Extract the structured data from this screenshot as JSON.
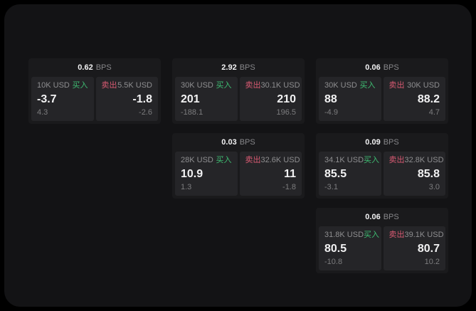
{
  "labels": {
    "buy": "买入",
    "sell": "卖出",
    "bps": "BPS"
  },
  "colors": {
    "buy_green": "#3ebd72",
    "sell_red": "#d85a72"
  },
  "cards": [
    {
      "bps": "0.62",
      "buy": {
        "amount": "10K USD",
        "value": "-3.7",
        "sub": "4.3"
      },
      "sell": {
        "amount": "5.5K USD",
        "value": "-1.8",
        "sub": "-2.6"
      }
    },
    {
      "bps": "2.92",
      "buy": {
        "amount": "30K USD",
        "value": "201",
        "sub": "-188.1"
      },
      "sell": {
        "amount": "30.1K USD",
        "value": "210",
        "sub": "196.5"
      }
    },
    {
      "bps": "0.06",
      "buy": {
        "amount": "30K USD",
        "value": "88",
        "sub": "-4.9"
      },
      "sell": {
        "amount": "30K USD",
        "value": "88.2",
        "sub": "4.7"
      }
    },
    {
      "bps": "0.03",
      "buy": {
        "amount": "28K USD",
        "value": "10.9",
        "sub": "1.3"
      },
      "sell": {
        "amount": "32.6K USD",
        "value": "11",
        "sub": "-1.8"
      }
    },
    {
      "bps": "0.09",
      "buy": {
        "amount": "34.1K USD",
        "value": "85.5",
        "sub": "-3.1"
      },
      "sell": {
        "amount": "32.8K USD",
        "value": "85.8",
        "sub": "3.0"
      }
    },
    {
      "bps": "0.06",
      "buy": {
        "amount": "31.8K USD",
        "value": "80.5",
        "sub": "-10.8"
      },
      "sell": {
        "amount": "39.1K USD",
        "value": "80.7",
        "sub": "10.2"
      }
    }
  ]
}
